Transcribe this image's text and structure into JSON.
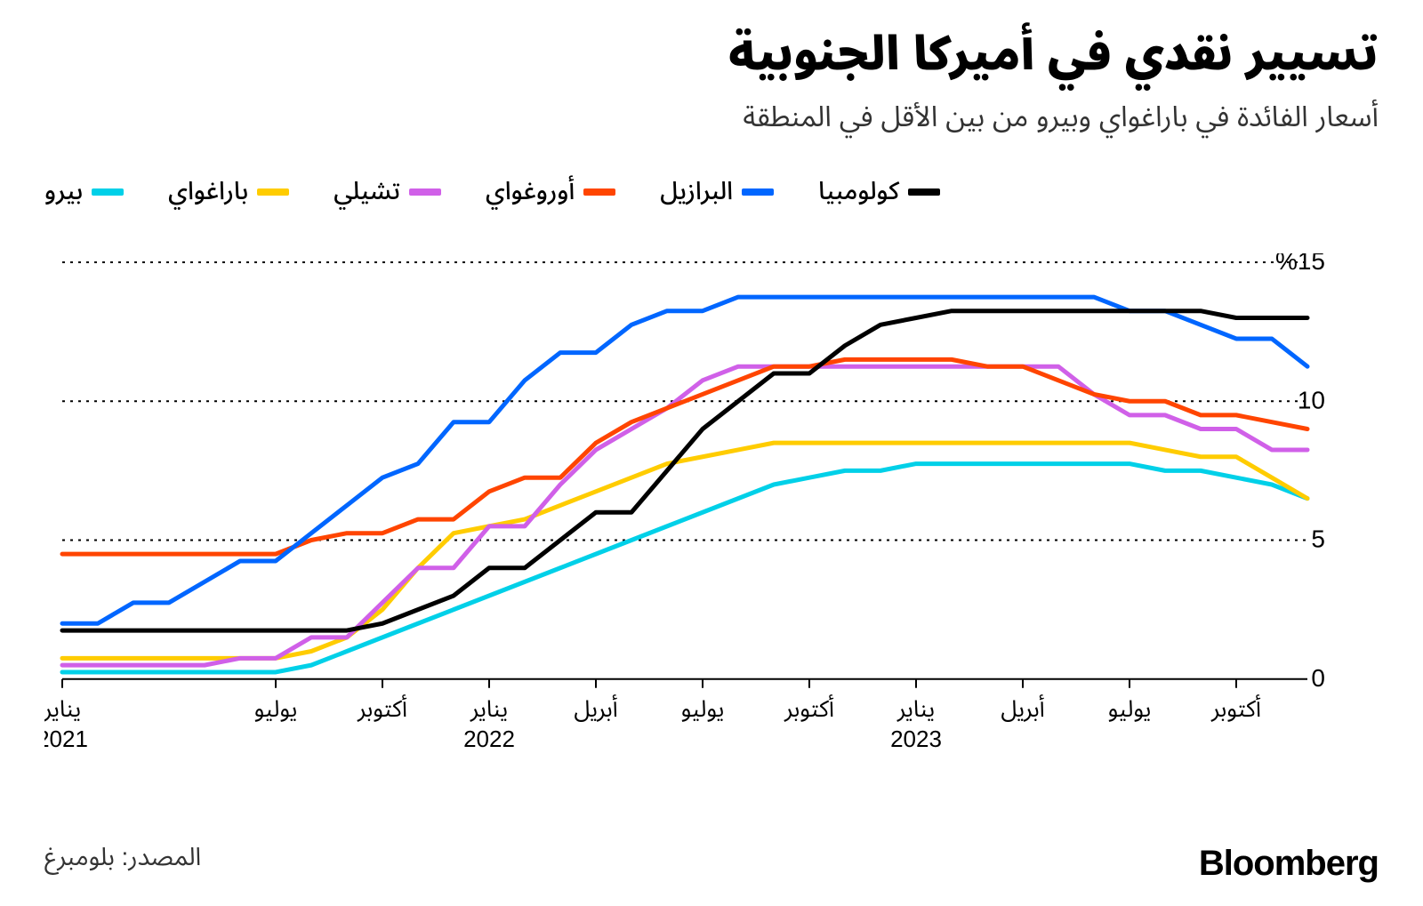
{
  "title": "تسيير نقدي في أميركا الجنوبية",
  "subtitle": "أسعار الفائدة في باراغواي وبيرو من بين الأقل في المنطقة",
  "source": "المصدر: بلومبرغ",
  "brand": "Bloomberg",
  "chart": {
    "type": "line",
    "background_color": "#ffffff",
    "grid_color": "#000000",
    "grid_dash": "3,6",
    "axis_color": "#000000",
    "line_width": 5,
    "label_fontsize": 26,
    "ylabel_fontsize": 28,
    "ylim": [
      -1,
      15
    ],
    "yticks": [
      {
        "v": 0,
        "label": "0"
      },
      {
        "v": 5,
        "label": "5"
      },
      {
        "v": 10,
        "label": "10"
      },
      {
        "v": 15,
        "label": "%15"
      }
    ],
    "x_count": 36,
    "xticks": [
      {
        "i": 0,
        "line1": "يناير",
        "line2": "2021"
      },
      {
        "i": 6,
        "line1": "يوليو",
        "line2": ""
      },
      {
        "i": 9,
        "line1": "أكتوبر",
        "line2": ""
      },
      {
        "i": 12,
        "line1": "يناير",
        "line2": "2022"
      },
      {
        "i": 15,
        "line1": "أبريل",
        "line2": ""
      },
      {
        "i": 18,
        "line1": "يوليو",
        "line2": ""
      },
      {
        "i": 21,
        "line1": "أكتوبر",
        "line2": ""
      },
      {
        "i": 24,
        "line1": "يناير",
        "line2": "2023"
      },
      {
        "i": 27,
        "line1": "أبريل",
        "line2": ""
      },
      {
        "i": 30,
        "line1": "يوليو",
        "line2": ""
      },
      {
        "i": 33,
        "line1": "أكتوبر",
        "line2": ""
      }
    ],
    "series": [
      {
        "name": "كولومبيا",
        "color": "#000000",
        "values": [
          1.75,
          1.75,
          1.75,
          1.75,
          1.75,
          1.75,
          1.75,
          1.75,
          1.75,
          2.0,
          2.5,
          3.0,
          4.0,
          4.0,
          5.0,
          6.0,
          6.0,
          7.5,
          9.0,
          10.0,
          11.0,
          11.0,
          12.0,
          12.75,
          13.0,
          13.25,
          13.25,
          13.25,
          13.25,
          13.25,
          13.25,
          13.25,
          13.25,
          13.0,
          13.0,
          13.0
        ]
      },
      {
        "name": "البرازيل",
        "color": "#0066ff",
        "values": [
          2.0,
          2.0,
          2.75,
          2.75,
          3.5,
          4.25,
          4.25,
          5.25,
          6.25,
          7.25,
          7.75,
          9.25,
          9.25,
          10.75,
          11.75,
          11.75,
          12.75,
          13.25,
          13.25,
          13.75,
          13.75,
          13.75,
          13.75,
          13.75,
          13.75,
          13.75,
          13.75,
          13.75,
          13.75,
          13.75,
          13.25,
          13.25,
          12.75,
          12.25,
          12.25,
          11.25
        ]
      },
      {
        "name": "أوروغواي",
        "color": "#ff4500",
        "values": [
          4.5,
          4.5,
          4.5,
          4.5,
          4.5,
          4.5,
          4.5,
          5.0,
          5.25,
          5.25,
          5.75,
          5.75,
          6.75,
          7.25,
          7.25,
          8.5,
          9.25,
          9.75,
          10.25,
          10.75,
          11.25,
          11.25,
          11.5,
          11.5,
          11.5,
          11.5,
          11.25,
          11.25,
          10.75,
          10.25,
          10.0,
          10.0,
          9.5,
          9.5,
          9.25,
          9.0
        ]
      },
      {
        "name": "تشيلي",
        "color": "#d060e8",
        "values": [
          0.5,
          0.5,
          0.5,
          0.5,
          0.5,
          0.75,
          0.75,
          1.5,
          1.5,
          2.75,
          4.0,
          4.0,
          5.5,
          5.5,
          7.0,
          8.25,
          9.0,
          9.75,
          10.75,
          11.25,
          11.25,
          11.25,
          11.25,
          11.25,
          11.25,
          11.25,
          11.25,
          11.25,
          11.25,
          10.25,
          9.5,
          9.5,
          9.0,
          9.0,
          8.25,
          8.25
        ]
      },
      {
        "name": "باراغواي",
        "color": "#ffcc00",
        "values": [
          0.75,
          0.75,
          0.75,
          0.75,
          0.75,
          0.75,
          0.75,
          1.0,
          1.5,
          2.5,
          4.0,
          5.25,
          5.5,
          5.75,
          6.25,
          6.75,
          7.25,
          7.75,
          8.0,
          8.25,
          8.5,
          8.5,
          8.5,
          8.5,
          8.5,
          8.5,
          8.5,
          8.5,
          8.5,
          8.5,
          8.5,
          8.25,
          8.0,
          8.0,
          7.25,
          6.5
        ]
      },
      {
        "name": "بيرو",
        "color": "#00d0e8",
        "values": [
          0.25,
          0.25,
          0.25,
          0.25,
          0.25,
          0.25,
          0.25,
          0.5,
          1.0,
          1.5,
          2.0,
          2.5,
          3.0,
          3.5,
          4.0,
          4.5,
          5.0,
          5.5,
          6.0,
          6.5,
          7.0,
          7.25,
          7.5,
          7.5,
          7.75,
          7.75,
          7.75,
          7.75,
          7.75,
          7.75,
          7.75,
          7.5,
          7.5,
          7.25,
          7.0,
          6.5
        ]
      }
    ]
  }
}
